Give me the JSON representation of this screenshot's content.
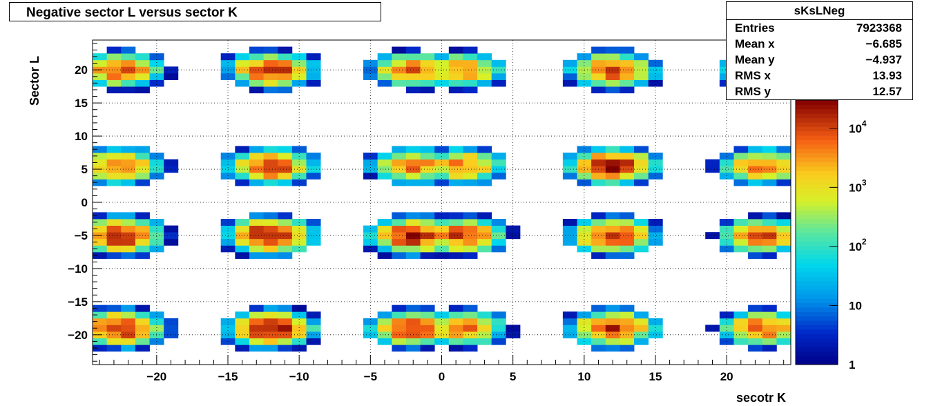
{
  "chart_data": {
    "type": "heatmap",
    "title": "Negative sector L versus sector K",
    "xlabel": "secotr K",
    "ylabel": "Sector L",
    "xlim": [
      -24.5,
      24.5
    ],
    "ylim": [
      -24.5,
      24.5
    ],
    "x_ticks": [
      -20,
      -15,
      -10,
      -5,
      0,
      5,
      10,
      15,
      20
    ],
    "x_tick_labels": [
      "−20",
      "−15",
      "−10",
      "−5",
      "0",
      "5",
      "10",
      "15",
      "20"
    ],
    "y_ticks": [
      -20,
      -15,
      -10,
      -5,
      0,
      5,
      10,
      15,
      20
    ],
    "y_tick_labels": [
      "−20",
      "−15",
      "−10",
      "−5",
      "0",
      "5",
      "10",
      "15",
      "20"
    ],
    "grid": true,
    "z_scale": "log",
    "z_range": [
      1,
      30000
    ],
    "colorbar_ticks": [
      {
        "value": 1,
        "label": "1"
      },
      {
        "value": 10,
        "label": "10"
      },
      {
        "value": 100,
        "label": "10",
        "exp": "2"
      },
      {
        "value": 1000,
        "label": "10",
        "exp": "3"
      },
      {
        "value": 10000,
        "label": "10",
        "exp": "4"
      }
    ],
    "cluster_centers_x": [
      -22.5,
      -12,
      -2,
      1.5,
      12,
      22.5
    ],
    "cluster_centers_y": [
      20,
      5.5,
      -5,
      -19
    ],
    "peak_log10": [
      [
        3.9,
        4.1,
        3.7,
        3.6,
        4.0,
        3.4
      ],
      [
        3.8,
        4.1,
        3.7,
        3.7,
        4.3,
        3.7
      ],
      [
        4.3,
        4.4,
        4.2,
        4.0,
        4.1,
        3.9
      ],
      [
        4.3,
        4.4,
        4.1,
        3.8,
        4.1,
        3.8
      ]
    ],
    "stats": {
      "name": "sKsLNeg",
      "rows": [
        {
          "label": "Entries",
          "value": "7923368"
        },
        {
          "label": "Mean x",
          "value": "−6.685"
        },
        {
          "label": "Mean y",
          "value": "−4.937"
        },
        {
          "label": "RMS x",
          "value": "13.93"
        },
        {
          "label": "RMS y",
          "value": "12.57"
        }
      ]
    }
  }
}
